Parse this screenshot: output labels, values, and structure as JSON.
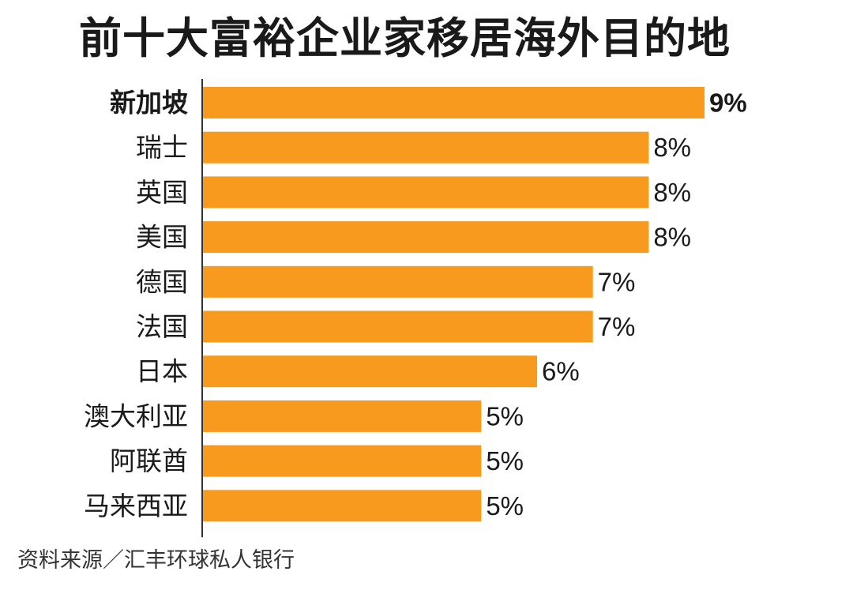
{
  "chart_data": {
    "type": "bar",
    "orientation": "horizontal",
    "title": "前十大富裕企业家移居海外目的地",
    "categories": [
      "新加坡",
      "瑞士",
      "英国",
      "美国",
      "德国",
      "法国",
      "日本",
      "澳大利亚",
      "阿联酋",
      "马来西亚"
    ],
    "values": [
      9,
      8,
      8,
      8,
      7,
      7,
      6,
      5,
      5,
      5
    ],
    "value_labels": [
      "9%",
      "8%",
      "8%",
      "8%",
      "7%",
      "7%",
      "6%",
      "5%",
      "5%",
      "5%"
    ],
    "unit": "%",
    "xlim": [
      0,
      9
    ],
    "highlight_category": "新加坡",
    "bar_color": "#F79A1E",
    "grid": false,
    "legend": "none",
    "xlabel": "",
    "ylabel": ""
  },
  "source": "资料来源／汇丰环球私人银行"
}
